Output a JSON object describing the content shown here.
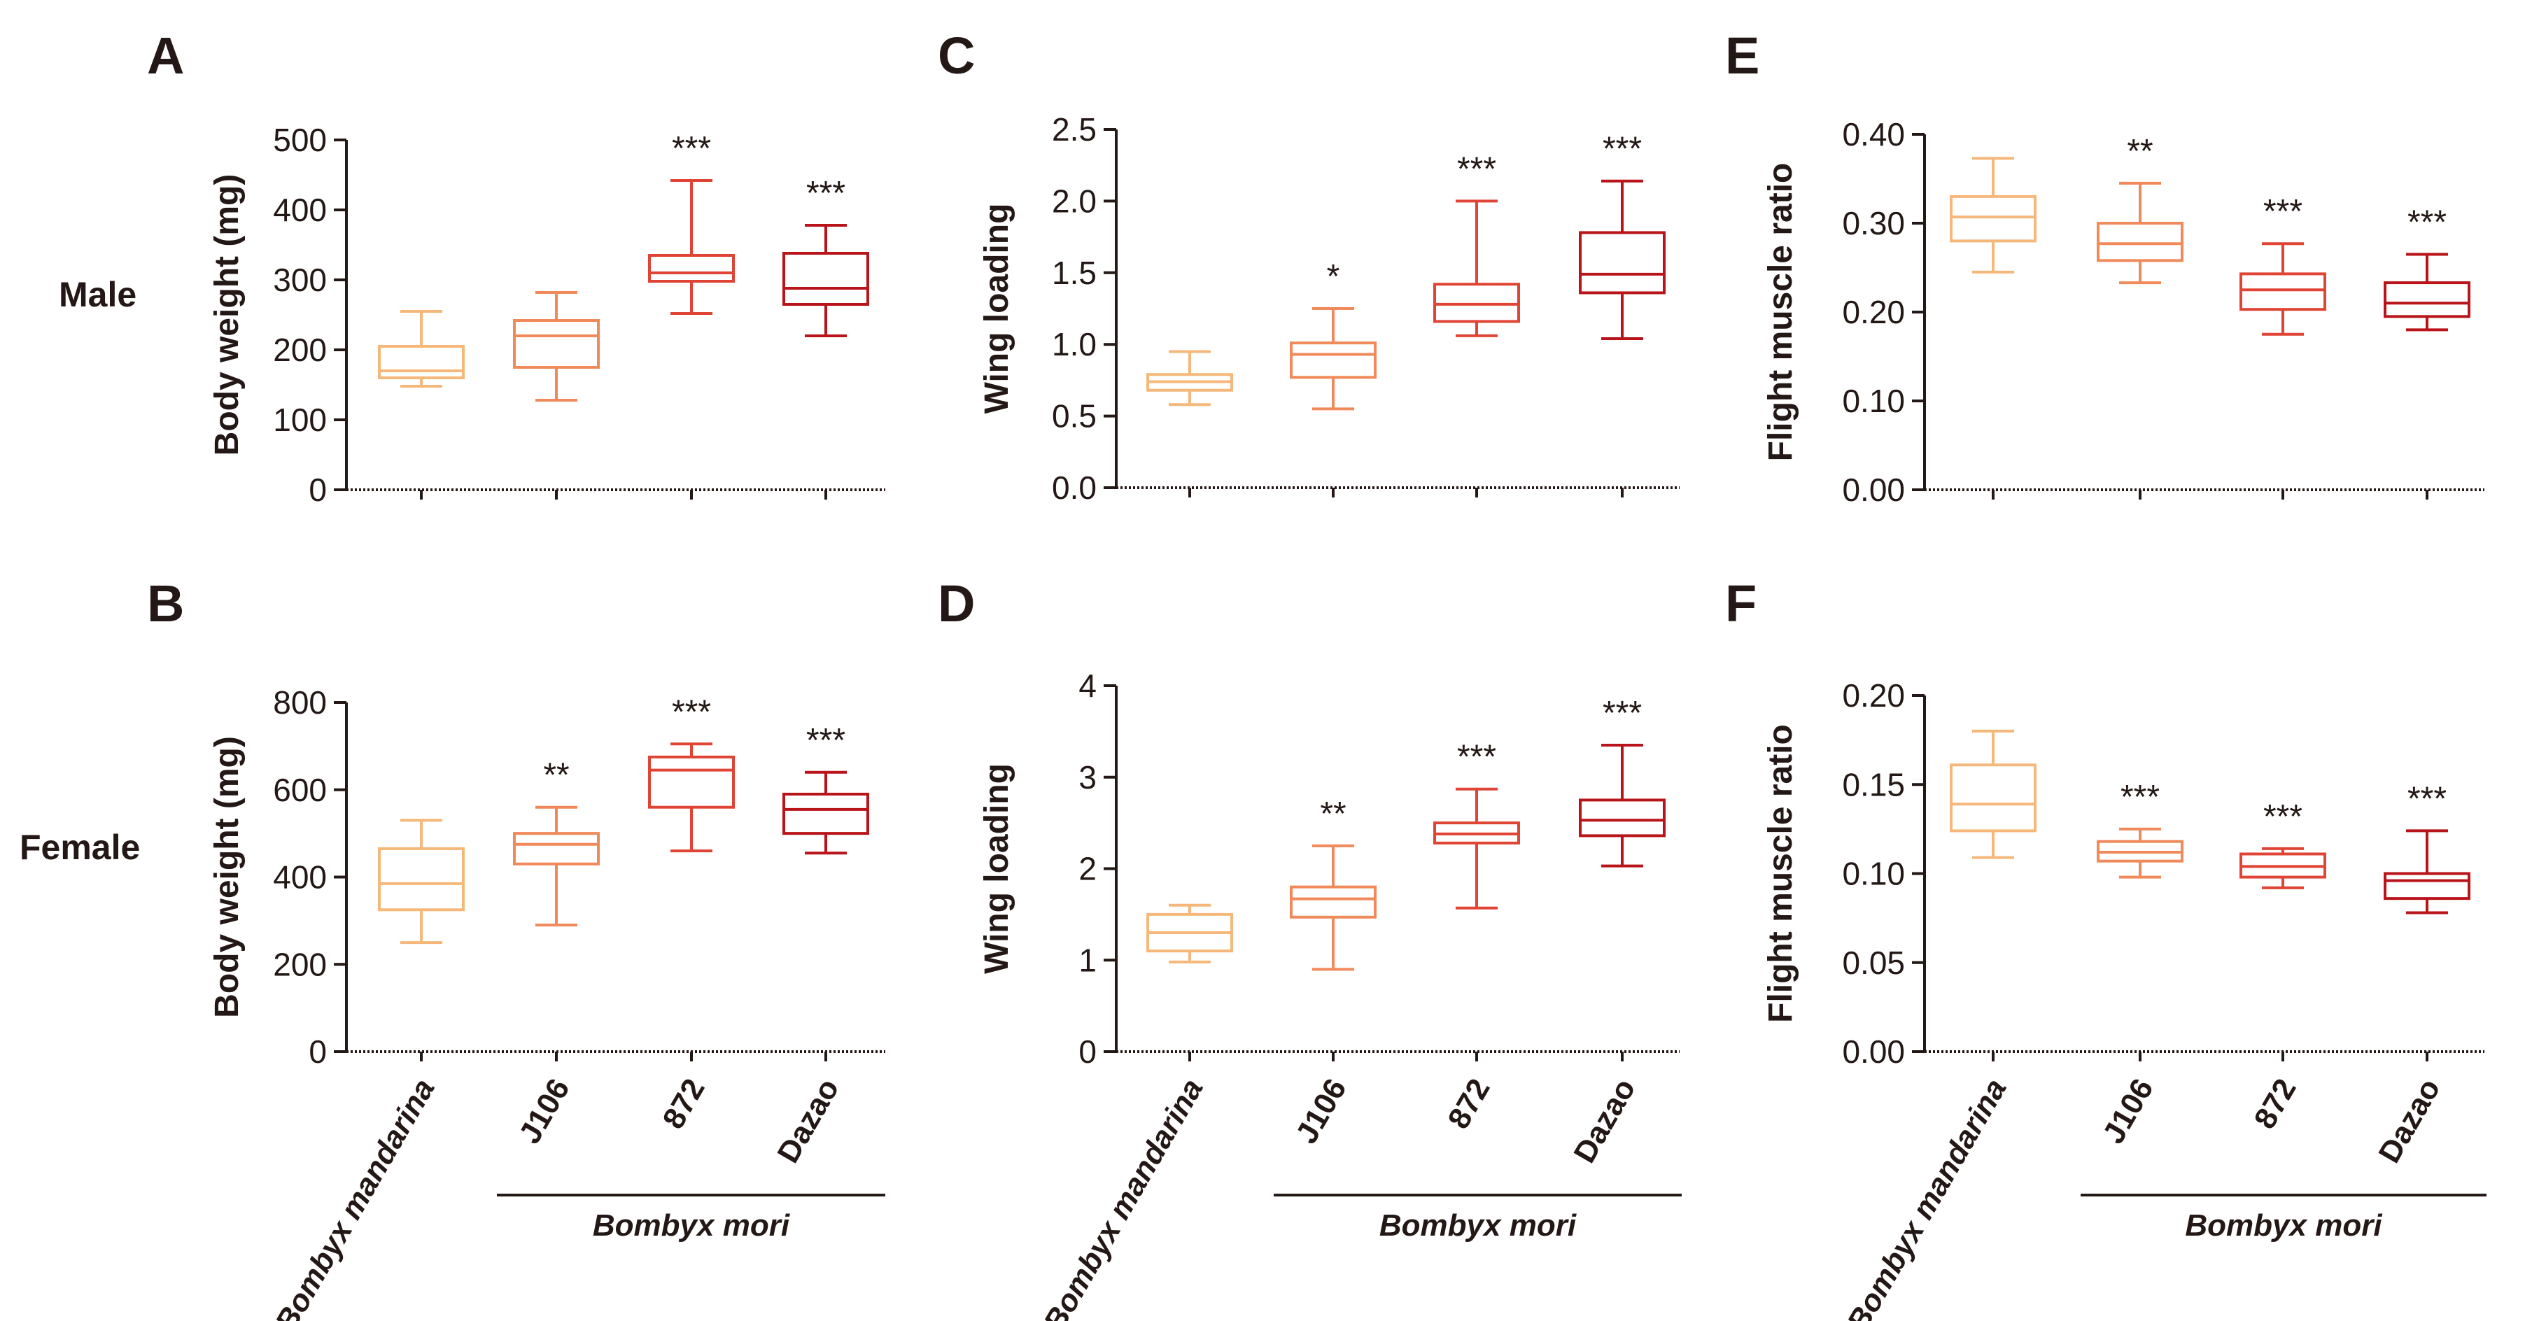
{
  "row_labels": [
    "Male",
    "Female"
  ],
  "group_label": "Bombyx mori",
  "colors": [
    "#F5B87A",
    "#F08A5A",
    "#E04434",
    "#B8141A"
  ],
  "chart_data": [
    {
      "panel": "A",
      "type": "box",
      "row": "Male",
      "ylabel": "Body weight (mg)",
      "ylim": [
        0,
        500
      ],
      "yticks": [
        "0",
        "100",
        "200",
        "300",
        "400",
        "500"
      ],
      "categories": [
        "Bombyx mandarina",
        "J106",
        "872",
        "Dazao"
      ],
      "boxes": [
        {
          "min": 148,
          "q1": 160,
          "median": 170,
          "q3": 205,
          "max": 255,
          "sig": ""
        },
        {
          "min": 128,
          "q1": 175,
          "median": 220,
          "q3": 242,
          "max": 282,
          "sig": ""
        },
        {
          "min": 252,
          "q1": 298,
          "median": 310,
          "q3": 335,
          "max": 442,
          "sig": "***"
        },
        {
          "min": 220,
          "q1": 265,
          "median": 288,
          "q3": 338,
          "max": 378,
          "sig": "***"
        }
      ]
    },
    {
      "panel": "B",
      "type": "box",
      "row": "Female",
      "ylabel": "Body weight (mg)",
      "ylim": [
        0,
        800
      ],
      "yticks": [
        "0",
        "200",
        "400",
        "600",
        "800"
      ],
      "categories": [
        "Bombyx mandarina",
        "J106",
        "872",
        "Dazao"
      ],
      "boxes": [
        {
          "min": 250,
          "q1": 325,
          "median": 385,
          "q3": 465,
          "max": 530,
          "sig": ""
        },
        {
          "min": 290,
          "q1": 430,
          "median": 475,
          "q3": 500,
          "max": 560,
          "sig": "**"
        },
        {
          "min": 460,
          "q1": 560,
          "median": 645,
          "q3": 675,
          "max": 705,
          "sig": "***"
        },
        {
          "min": 455,
          "q1": 500,
          "median": 555,
          "q3": 590,
          "max": 640,
          "sig": "***"
        }
      ]
    },
    {
      "panel": "C",
      "type": "box",
      "row": "Male",
      "ylabel": "Wing loading",
      "ylim": [
        0,
        2.5
      ],
      "yticks": [
        "0.0",
        "0.5",
        "1.0",
        "1.5",
        "2.0",
        "2.5"
      ],
      "categories": [
        "Bombyx mandarina",
        "J106",
        "872",
        "Dazao"
      ],
      "boxes": [
        {
          "min": 0.58,
          "q1": 0.68,
          "median": 0.74,
          "q3": 0.79,
          "max": 0.95,
          "sig": ""
        },
        {
          "min": 0.55,
          "q1": 0.77,
          "median": 0.93,
          "q3": 1.01,
          "max": 1.25,
          "sig": "*"
        },
        {
          "min": 1.06,
          "q1": 1.16,
          "median": 1.28,
          "q3": 1.42,
          "max": 2.0,
          "sig": "***"
        },
        {
          "min": 1.04,
          "q1": 1.36,
          "median": 1.49,
          "q3": 1.78,
          "max": 2.14,
          "sig": "***"
        }
      ]
    },
    {
      "panel": "D",
      "type": "box",
      "row": "Female",
      "ylabel": "Wing loading",
      "ylim": [
        0,
        4
      ],
      "yticks": [
        "0",
        "1",
        "2",
        "3",
        "4"
      ],
      "categories": [
        "Bombyx mandarina",
        "J106",
        "872",
        "Dazao"
      ],
      "boxes": [
        {
          "min": 0.98,
          "q1": 1.1,
          "median": 1.3,
          "q3": 1.5,
          "max": 1.6,
          "sig": ""
        },
        {
          "min": 0.9,
          "q1": 1.47,
          "median": 1.67,
          "q3": 1.8,
          "max": 2.25,
          "sig": "**"
        },
        {
          "min": 1.57,
          "q1": 2.28,
          "median": 2.38,
          "q3": 2.5,
          "max": 2.87,
          "sig": "***"
        },
        {
          "min": 2.03,
          "q1": 2.36,
          "median": 2.53,
          "q3": 2.75,
          "max": 3.35,
          "sig": "***"
        }
      ]
    },
    {
      "panel": "E",
      "type": "box",
      "row": "Male",
      "ylabel": "Flight muscle ratio",
      "ylim": [
        0,
        0.4
      ],
      "yticks": [
        "0.00",
        "0.10",
        "0.20",
        "0.30",
        "0.40"
      ],
      "categories": [
        "Bombyx mandarina",
        "J106",
        "872",
        "Dazao"
      ],
      "boxes": [
        {
          "min": 0.245,
          "q1": 0.28,
          "median": 0.307,
          "q3": 0.33,
          "max": 0.373,
          "sig": ""
        },
        {
          "min": 0.233,
          "q1": 0.258,
          "median": 0.277,
          "q3": 0.3,
          "max": 0.345,
          "sig": "**"
        },
        {
          "min": 0.175,
          "q1": 0.203,
          "median": 0.225,
          "q3": 0.243,
          "max": 0.277,
          "sig": "***"
        },
        {
          "min": 0.18,
          "q1": 0.195,
          "median": 0.21,
          "q3": 0.233,
          "max": 0.265,
          "sig": "***"
        }
      ]
    },
    {
      "panel": "F",
      "type": "box",
      "row": "Female",
      "ylabel": "Flight muscle ratio",
      "ylim": [
        0,
        0.2
      ],
      "yticks": [
        "0.00",
        "0.05",
        "0.10",
        "0.15",
        "0.20"
      ],
      "categories": [
        "Bombyx mandarina",
        "J106",
        "872",
        "Dazao"
      ],
      "boxes": [
        {
          "min": 0.109,
          "q1": 0.124,
          "median": 0.139,
          "q3": 0.161,
          "max": 0.18,
          "sig": ""
        },
        {
          "min": 0.098,
          "q1": 0.107,
          "median": 0.112,
          "q3": 0.118,
          "max": 0.125,
          "sig": "***"
        },
        {
          "min": 0.092,
          "q1": 0.098,
          "median": 0.104,
          "q3": 0.111,
          "max": 0.114,
          "sig": "***"
        },
        {
          "min": 0.078,
          "q1": 0.086,
          "median": 0.096,
          "q3": 0.1,
          "max": 0.124,
          "sig": "***"
        }
      ]
    }
  ]
}
